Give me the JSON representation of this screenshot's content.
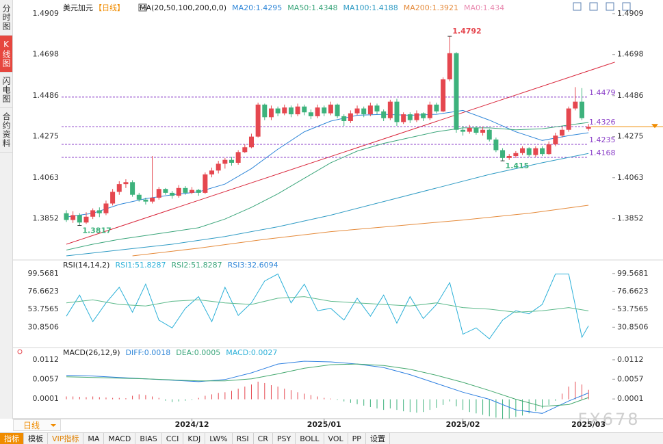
{
  "sidebar_tabs": [
    "分时图",
    "K线图",
    "闪电图",
    "合约资料"
  ],
  "period": "日线",
  "toolbar": [
    "指标",
    "模板",
    "VIP指标",
    "MA",
    "MACD",
    "BIAS",
    "CCI",
    "KDJ",
    "LW%",
    "RSI",
    "CR",
    "PSY",
    "BOLL",
    "VOL",
    "PP",
    "设置"
  ],
  "watermark": "FX678",
  "chart_data": [
    {
      "type": "candlestick",
      "title": "美元加元",
      "subtitle": "【日线】",
      "subtitle_color": "#f08c00",
      "legend_title": "MA(20,50,100,200,0,0)",
      "legend": [
        {
          "text": "MA20:1.4295",
          "color": "#2f86d8"
        },
        {
          "text": "MA50:1.4348",
          "color": "#3aa57a"
        },
        {
          "text": "MA100:1.4188",
          "color": "#2f9bc4"
        },
        {
          "text": "MA200:1.3921",
          "color": "#e58a3a"
        },
        {
          "text": "MA0:1.434",
          "color": "#e98ab0"
        }
      ],
      "up_color": "#e5474f",
      "down_color": "#3db27c",
      "ylim": [
        1.3646,
        1.4951
      ],
      "yticks": [
        1.4909,
        1.4698,
        1.4486,
        1.4275,
        1.4063,
        1.3852
      ],
      "xticks": [
        {
          "value": 19,
          "label": "2024/12"
        },
        {
          "value": 39,
          "label": "2025/01"
        },
        {
          "value": 60,
          "label": "2025/02"
        },
        {
          "value": 79,
          "label": "2025/03"
        }
      ],
      "open": [
        1.388,
        1.3845,
        1.387,
        1.3832,
        1.3862,
        1.3895,
        1.388,
        1.393,
        1.399,
        1.403,
        1.404,
        1.3975,
        1.395,
        1.394,
        1.396,
        1.4005,
        1.3985,
        1.397,
        1.401,
        1.3985,
        1.4,
        1.3985,
        1.408,
        1.41,
        1.4135,
        1.4155,
        1.414,
        1.4195,
        1.422,
        1.4275,
        1.444,
        1.4375,
        1.442,
        1.4395,
        1.4425,
        1.439,
        1.443,
        1.44,
        1.438,
        1.4425,
        1.4395,
        1.444,
        1.438,
        1.4355,
        1.4395,
        1.442,
        1.439,
        1.4435,
        1.4405,
        1.437,
        1.4455,
        1.435,
        1.439,
        1.436,
        1.4395,
        1.437,
        1.444,
        1.4405,
        1.457,
        1.4705,
        1.431,
        1.43,
        1.432,
        1.4295,
        1.431,
        1.426,
        1.4205,
        1.4165,
        1.4175,
        1.419,
        1.4215,
        1.418,
        1.4215,
        1.4185,
        1.4235,
        1.428,
        1.431,
        1.442,
        1.4455,
        1.4315
      ],
      "high": [
        1.3895,
        1.389,
        1.388,
        1.3885,
        1.3905,
        1.391,
        1.3945,
        1.4005,
        1.4045,
        1.4055,
        1.405,
        1.3985,
        1.396,
        1.4175,
        1.4015,
        1.401,
        1.3995,
        1.4025,
        1.402,
        1.4015,
        1.4005,
        1.409,
        1.4115,
        1.415,
        1.4165,
        1.417,
        1.4205,
        1.4235,
        1.429,
        1.445,
        1.4445,
        1.4435,
        1.443,
        1.444,
        1.4435,
        1.4445,
        1.444,
        1.4415,
        1.444,
        1.4435,
        1.4455,
        1.4445,
        1.439,
        1.441,
        1.4435,
        1.443,
        1.445,
        1.4445,
        1.4415,
        1.4465,
        1.447,
        1.44,
        1.44,
        1.441,
        1.44,
        1.4455,
        1.445,
        1.458,
        1.4792,
        1.471,
        1.433,
        1.4335,
        1.433,
        1.4325,
        1.4315,
        1.427,
        1.4215,
        1.4185,
        1.42,
        1.4225,
        1.422,
        1.4225,
        1.4225,
        1.425,
        1.4295,
        1.4325,
        1.443,
        1.453,
        1.4525,
        1.434
      ],
      "low": [
        1.3835,
        1.383,
        1.3817,
        1.3825,
        1.385,
        1.386,
        1.387,
        1.392,
        1.3975,
        1.401,
        1.3965,
        1.394,
        1.3925,
        1.393,
        1.395,
        1.3975,
        1.3955,
        1.396,
        1.3975,
        1.3978,
        1.397,
        1.398,
        1.4065,
        1.4085,
        1.411,
        1.4125,
        1.413,
        1.419,
        1.4215,
        1.427,
        1.436,
        1.436,
        1.438,
        1.4385,
        1.4375,
        1.438,
        1.4385,
        1.4365,
        1.437,
        1.438,
        1.4385,
        1.437,
        1.433,
        1.4345,
        1.4385,
        1.4375,
        1.438,
        1.439,
        1.4355,
        1.436,
        1.433,
        1.434,
        1.4345,
        1.435,
        1.4355,
        1.436,
        1.4395,
        1.44,
        1.456,
        1.4295,
        1.428,
        1.429,
        1.4285,
        1.428,
        1.425,
        1.4195,
        1.415,
        1.4155,
        1.4165,
        1.418,
        1.417,
        1.417,
        1.4175,
        1.418,
        1.4225,
        1.427,
        1.43,
        1.441,
        1.436,
        1.4305
      ],
      "close": [
        1.3845,
        1.387,
        1.3832,
        1.3862,
        1.3895,
        1.388,
        1.393,
        1.399,
        1.403,
        1.404,
        1.3975,
        1.395,
        1.394,
        1.396,
        1.4005,
        1.3985,
        1.397,
        1.401,
        1.3985,
        1.4,
        1.3985,
        1.408,
        1.41,
        1.4135,
        1.4155,
        1.414,
        1.4195,
        1.422,
        1.4275,
        1.444,
        1.4375,
        1.442,
        1.4395,
        1.4425,
        1.439,
        1.443,
        1.44,
        1.438,
        1.4425,
        1.4395,
        1.444,
        1.438,
        1.4355,
        1.4395,
        1.442,
        1.439,
        1.4435,
        1.4405,
        1.437,
        1.4455,
        1.435,
        1.439,
        1.436,
        1.4395,
        1.437,
        1.444,
        1.4405,
        1.457,
        1.4705,
        1.431,
        1.43,
        1.432,
        1.4295,
        1.431,
        1.426,
        1.4205,
        1.4165,
        1.4175,
        1.419,
        1.4215,
        1.418,
        1.4215,
        1.4185,
        1.4235,
        1.428,
        1.431,
        1.442,
        1.4455,
        1.437,
        1.4326
      ],
      "series": [
        {
          "name": "MA20",
          "color": "#2f86d8",
          "x": [
            0,
            4,
            8,
            12,
            16,
            20,
            24,
            28,
            32,
            36,
            40,
            44,
            48,
            52,
            56,
            60,
            64,
            68,
            72,
            76,
            79
          ],
          "values": [
            1.386,
            1.388,
            1.3925,
            1.3955,
            1.3975,
            1.399,
            1.403,
            1.411,
            1.421,
            1.43,
            1.4355,
            1.4385,
            1.439,
            1.4385,
            1.439,
            1.441,
            1.436,
            1.43,
            1.4255,
            1.428,
            1.4295
          ]
        },
        {
          "name": "MA50",
          "color": "#3aa57a",
          "x": [
            0,
            4,
            8,
            12,
            16,
            20,
            24,
            28,
            32,
            36,
            40,
            44,
            48,
            52,
            56,
            60,
            64,
            68,
            72,
            76,
            79
          ],
          "values": [
            1.369,
            1.372,
            1.3745,
            1.3765,
            1.3785,
            1.3805,
            1.385,
            1.391,
            1.398,
            1.406,
            1.414,
            1.42,
            1.424,
            1.427,
            1.43,
            1.432,
            1.432,
            1.431,
            1.4315,
            1.4335,
            1.4348
          ]
        },
        {
          "name": "MA100",
          "color": "#2f9bc4",
          "x": [
            0,
            8,
            16,
            24,
            32,
            40,
            48,
            56,
            64,
            72,
            79
          ],
          "values": [
            1.366,
            1.369,
            1.372,
            1.376,
            1.381,
            1.387,
            1.394,
            1.401,
            1.408,
            1.414,
            1.4188
          ]
        },
        {
          "name": "MA200",
          "color": "#e58a3a",
          "x": [
            10,
            20,
            30,
            40,
            50,
            60,
            70,
            79
          ],
          "values": [
            1.366,
            1.37,
            1.3745,
            1.3785,
            1.3815,
            1.3845,
            1.388,
            1.3921
          ]
        }
      ],
      "trendline": {
        "color": "#d9263b",
        "x": [
          0,
          83
        ],
        "values": [
          1.372,
          1.4659
        ]
      },
      "levels": [
        {
          "value": 1.4479,
          "color": "#8b3fc8"
        },
        {
          "value": 1.4326,
          "color": "#8b3fc8"
        },
        {
          "value": 1.4235,
          "color": "#8b3fc8"
        },
        {
          "value": 1.4168,
          "color": "#8b3fc8"
        }
      ],
      "annotations": [
        {
          "index": 58,
          "value": 1.4792,
          "color": "#e5474f",
          "position": "above"
        },
        {
          "index": 2,
          "value": 1.3817,
          "color": "#3db27c",
          "position": "below"
        },
        {
          "index": 66,
          "value": 1.415,
          "color": "#3db27c",
          "position": "below"
        }
      ],
      "last_price_color": "#f08c00"
    },
    {
      "type": "line",
      "title": "RSI(14,14,2)",
      "legend": [
        {
          "text": "RSI1:51.8287",
          "color": "#2bb0d8"
        },
        {
          "text": "RSI2:51.8287",
          "color": "#3aa57a"
        },
        {
          "text": "RSI3:32.6094",
          "color": "#2f86d8"
        }
      ],
      "ylim": [
        7.5,
        113.4
      ],
      "yticks": [
        99.5681,
        76.6623,
        53.7565,
        30.8506
      ],
      "series": [
        {
          "name": "RSI3",
          "color": "#2bb0d8",
          "x": [
            0,
            2,
            4,
            6,
            8,
            10,
            12,
            14,
            16,
            18,
            20,
            22,
            24,
            26,
            28,
            30,
            32,
            34,
            36,
            38,
            40,
            42,
            44,
            46,
            48,
            50,
            52,
            54,
            56,
            58,
            60,
            62,
            64,
            66,
            68,
            70,
            72,
            74,
            76,
            78,
            79
          ],
          "values": [
            45,
            72,
            38,
            62,
            82,
            50,
            86,
            40,
            30,
            55,
            70,
            38,
            82,
            46,
            62,
            90,
            99,
            62,
            86,
            52,
            55,
            40,
            68,
            45,
            72,
            36,
            70,
            42,
            60,
            88,
            22,
            30,
            16,
            40,
            52,
            48,
            60,
            99,
            99,
            18,
            32.6094
          ]
        },
        {
          "name": "RSI2",
          "color": "#5bb98a",
          "x": [
            0,
            4,
            8,
            12,
            16,
            20,
            24,
            28,
            32,
            36,
            40,
            44,
            48,
            52,
            56,
            60,
            64,
            68,
            72,
            76,
            79
          ],
          "values": [
            62,
            66,
            60,
            58,
            64,
            66,
            62,
            60,
            68,
            70,
            64,
            62,
            60,
            58,
            62,
            56,
            54,
            50,
            52,
            56,
            51.8287
          ]
        }
      ]
    },
    {
      "type": "macd",
      "title": "MACD(26,12,9)",
      "legend": [
        {
          "text": "DIFF:0.0018",
          "color": "#2f86d8"
        },
        {
          "text": "DEA:0.0005",
          "color": "#3aa57a"
        },
        {
          "text": "MACD:0.0027",
          "color": "#2bb0d8"
        }
      ],
      "ylim": [
        -0.0055,
        0.0139
      ],
      "yticks": [
        0.0112,
        0.0057,
        0.0001
      ],
      "up_color": "#e5474f",
      "down_color": "#3db27c",
      "series": [
        {
          "name": "DIFF",
          "color": "#2d7fe0",
          "x": [
            0,
            4,
            8,
            12,
            16,
            20,
            24,
            28,
            32,
            36,
            40,
            44,
            48,
            52,
            56,
            60,
            64,
            68,
            72,
            76,
            79
          ],
          "values": [
            0.0068,
            0.0066,
            0.0062,
            0.0058,
            0.0054,
            0.005,
            0.0056,
            0.0075,
            0.01,
            0.0108,
            0.0106,
            0.01,
            0.009,
            0.007,
            0.0045,
            0.002,
            0.0,
            -0.003,
            -0.004,
            -0.0005,
            0.0018
          ]
        },
        {
          "name": "DEA",
          "color": "#43a86e",
          "x": [
            0,
            4,
            8,
            12,
            16,
            20,
            24,
            28,
            32,
            36,
            40,
            44,
            48,
            52,
            56,
            60,
            64,
            68,
            72,
            76,
            79
          ],
          "values": [
            0.0064,
            0.0062,
            0.006,
            0.0058,
            0.0055,
            0.0052,
            0.0052,
            0.0058,
            0.0072,
            0.0088,
            0.0098,
            0.01,
            0.0096,
            0.0085,
            0.0068,
            0.0048,
            0.0025,
            0.0,
            -0.002,
            -0.0015,
            0.0005
          ]
        }
      ],
      "histogram": [
        0.0008,
        0.0008,
        0.0007,
        0.0006,
        0.0008,
        0.0006,
        0.0005,
        0.0004,
        0.0004,
        0.0003,
        0.001,
        0.0014,
        0.0012,
        0.0008,
        0.0004,
        -0.0004,
        -0.0008,
        -0.0006,
        -0.0004,
        -0.0002,
        0.0004,
        0.001,
        0.0014,
        0.0018,
        0.002,
        0.0024,
        0.003,
        0.0036,
        0.0042,
        0.005,
        0.0046,
        0.004,
        0.0036,
        0.003,
        0.0026,
        0.002,
        0.0016,
        0.0012,
        0.0008,
        0.0004,
        0.0002,
        -0.0002,
        -0.0006,
        -0.001,
        -0.0014,
        -0.0018,
        -0.0022,
        -0.0026,
        -0.003,
        -0.0026,
        -0.003,
        -0.0034,
        -0.0036,
        -0.0038,
        -0.0036,
        -0.003,
        -0.0024,
        -0.0016,
        -0.0006,
        -0.002,
        -0.003,
        -0.0036,
        -0.004,
        -0.0044,
        -0.0048,
        -0.0052,
        -0.0056,
        -0.0054,
        -0.005,
        -0.0046,
        -0.004,
        -0.0034,
        -0.0026,
        -0.0016,
        -0.0004,
        0.0016,
        0.0036,
        0.005,
        0.0042,
        0.0027
      ]
    }
  ]
}
